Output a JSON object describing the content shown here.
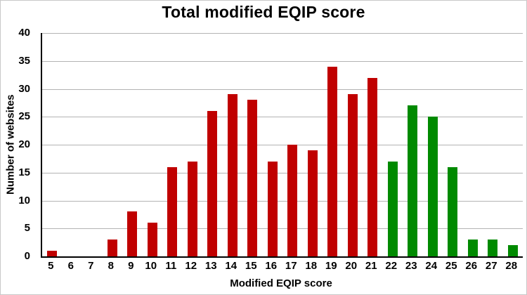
{
  "chart_data": {
    "type": "bar",
    "title": "Total modified EQIP score",
    "xlabel": "Modified EQIP score",
    "ylabel": "Number of websites",
    "categories": [
      5,
      6,
      7,
      8,
      9,
      10,
      11,
      12,
      13,
      14,
      15,
      16,
      17,
      18,
      19,
      20,
      21,
      22,
      23,
      24,
      25,
      26,
      27,
      28
    ],
    "values": [
      1,
      0,
      0,
      3,
      8,
      6,
      16,
      17,
      26,
      29,
      28,
      17,
      20,
      19,
      34,
      29,
      32,
      17,
      27,
      25,
      16,
      3,
      3,
      2
    ],
    "bar_colors": [
      "red",
      "red",
      "red",
      "red",
      "red",
      "red",
      "red",
      "red",
      "red",
      "red",
      "red",
      "red",
      "red",
      "red",
      "red",
      "red",
      "red",
      "green",
      "green",
      "green",
      "green",
      "green",
      "green",
      "green"
    ],
    "colors": {
      "red": "#C00000",
      "green": "#008A00",
      "grid": "#B3B3B3",
      "axis": "#000000"
    },
    "ylim": [
      0,
      40
    ],
    "ytick_step": 5,
    "grid": true,
    "legend": false
  }
}
